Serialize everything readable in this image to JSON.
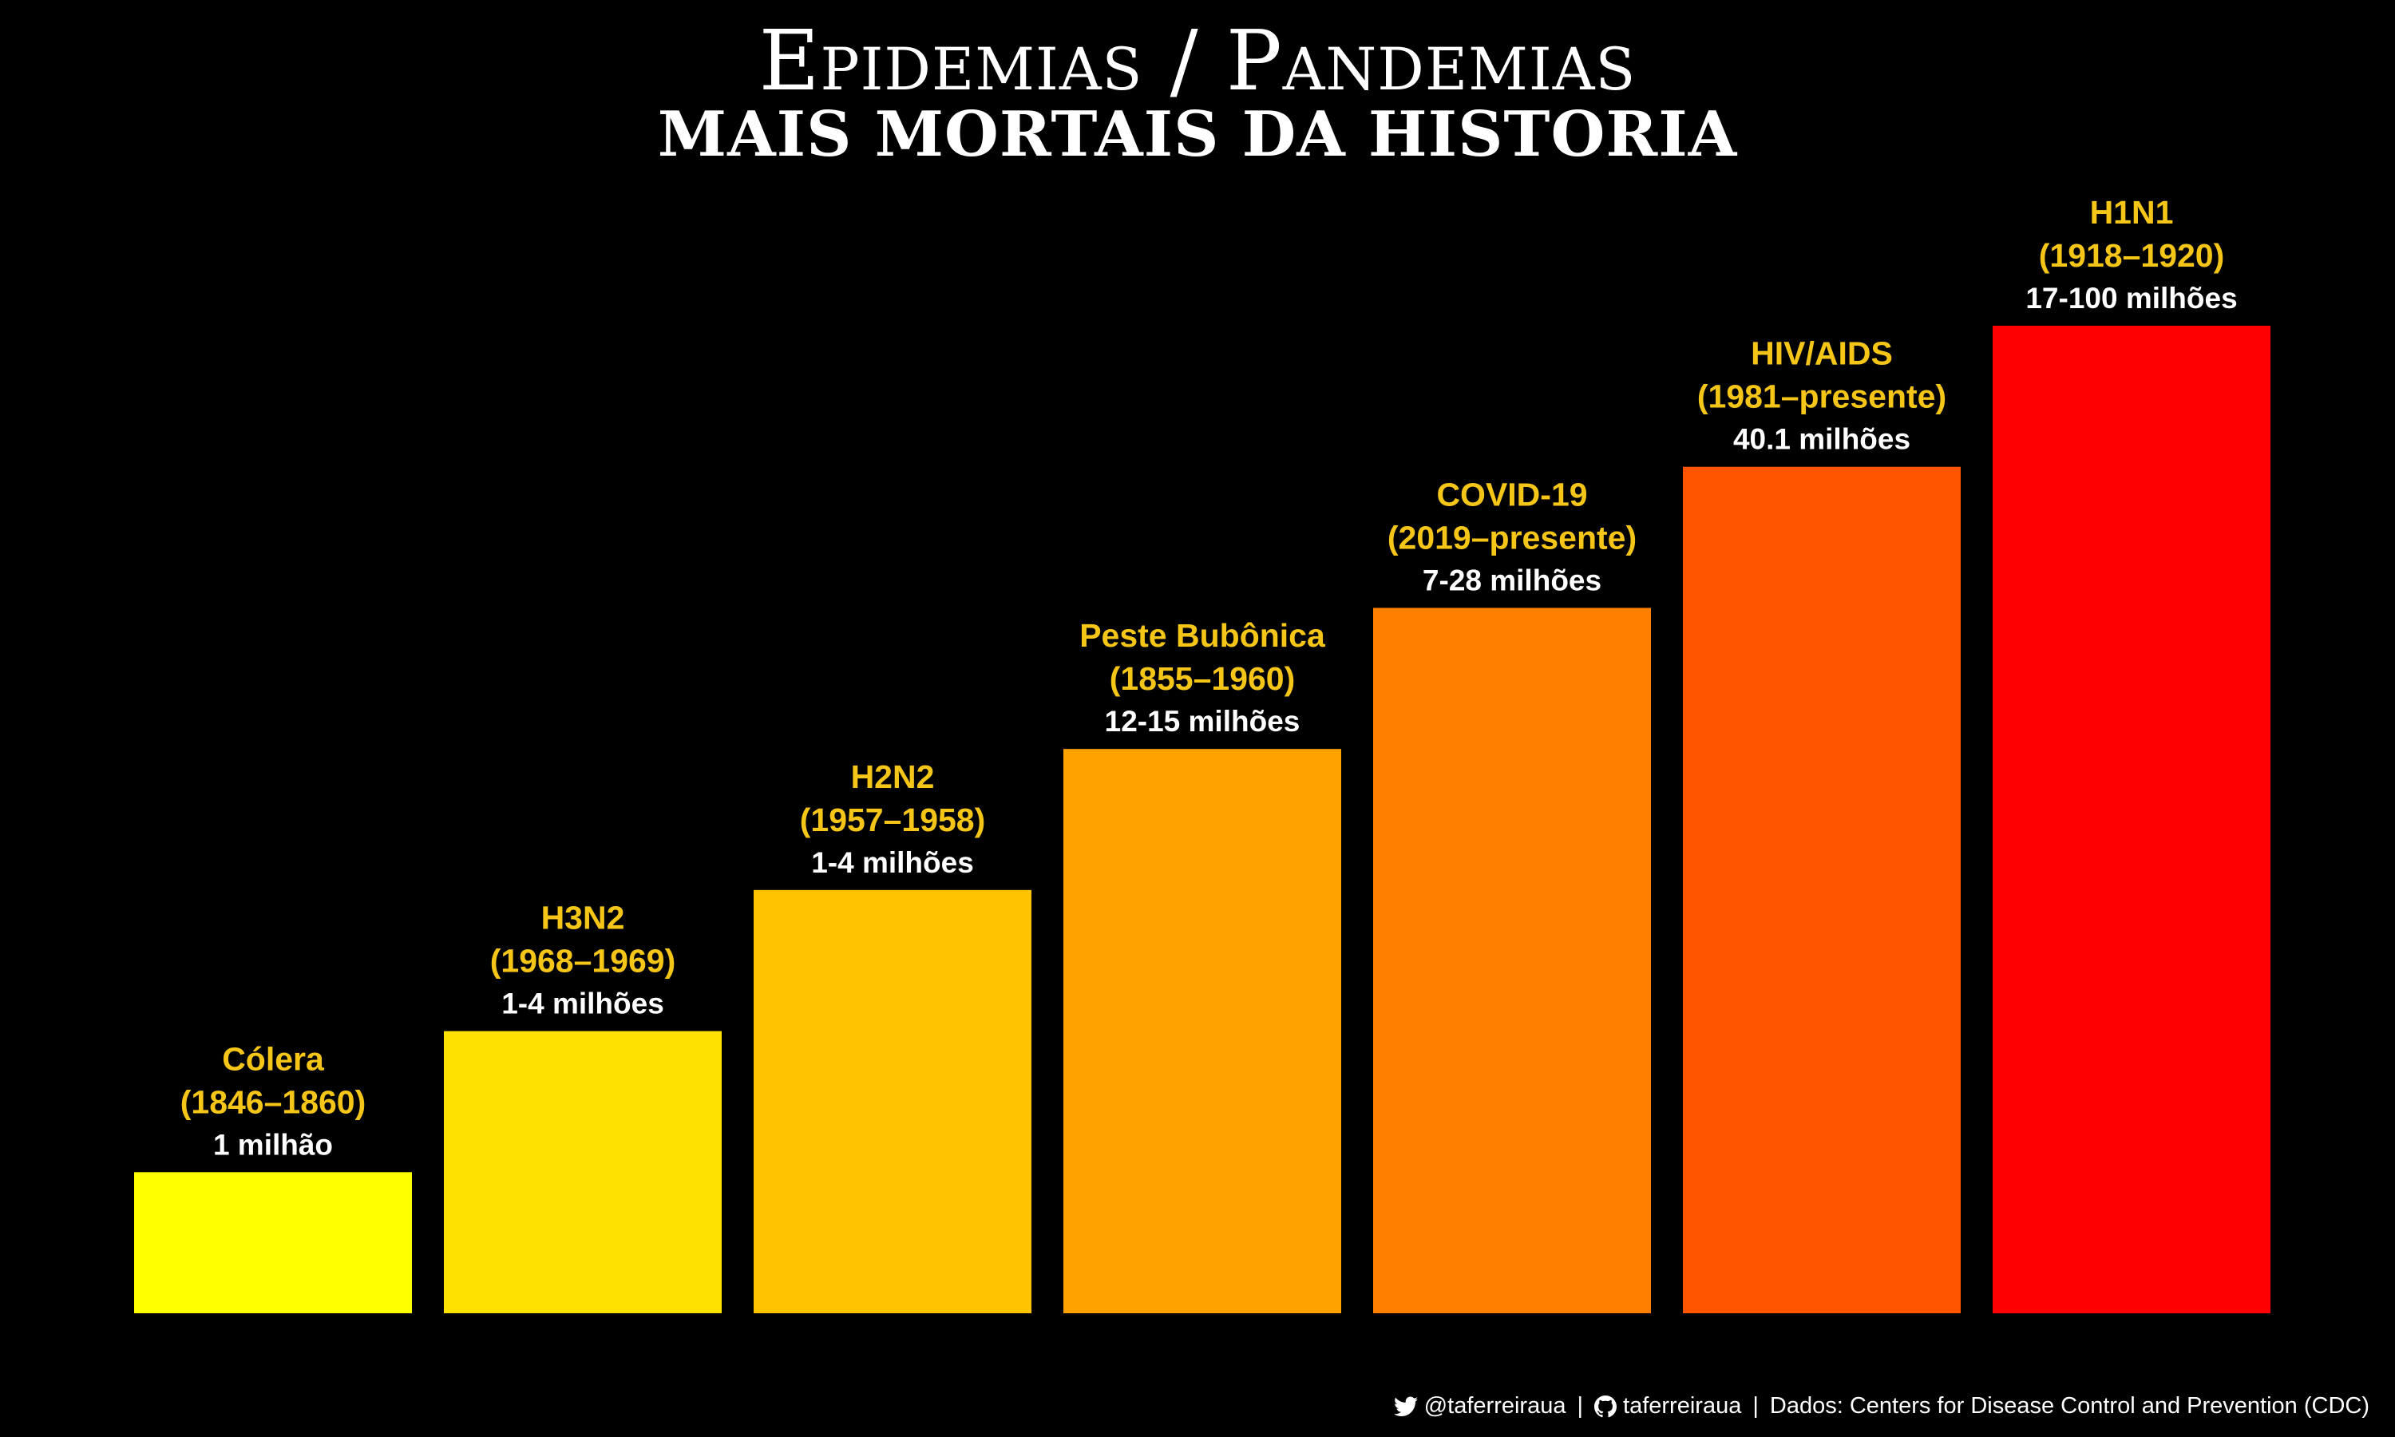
{
  "title": "Epidemias / Pandemias",
  "subtitle": "MAIS MORTAIS DA HISTORIA",
  "footer": {
    "twitter_icon": "twitter-bird-icon",
    "twitter_handle": "@taferreiraua",
    "separator1": "|",
    "github_icon": "github-icon",
    "github_handle": "taferreiraua",
    "separator2": "|",
    "source": "Dados: Centers for Disease Control and Prevention (CDC)"
  },
  "colors": {
    "background": "#000000",
    "label_name": "#f5c518",
    "label_deaths": "#ffffff"
  },
  "chart_data": {
    "type": "bar",
    "categories": [
      "Cólera",
      "H3N2",
      "H2N2",
      "Peste Bubônica",
      "COVID-19",
      "HIV/AIDS",
      "H1N1"
    ],
    "periods": [
      "(1846–1860)",
      "(1968–1969)",
      "(1957–1958)",
      "(1855–1960)",
      "(2019–presente)",
      "(1981–presente)",
      "(1918–1920)"
    ],
    "death_labels": [
      "1 milhão",
      "1-4 milhões",
      "1-4 milhões",
      "12-15 milhões",
      "7-28 milhões",
      "40.1 milhões",
      "17-100 milhões"
    ],
    "values": [
      1,
      2,
      3,
      4,
      5,
      6,
      7
    ],
    "colors": [
      "#ffff00",
      "#ffe100",
      "#ffc300",
      "#ffa200",
      "#ff8000",
      "#ff5500",
      "#ff0000"
    ],
    "ylim": [
      0,
      7
    ],
    "grid": false,
    "legend": "none"
  }
}
